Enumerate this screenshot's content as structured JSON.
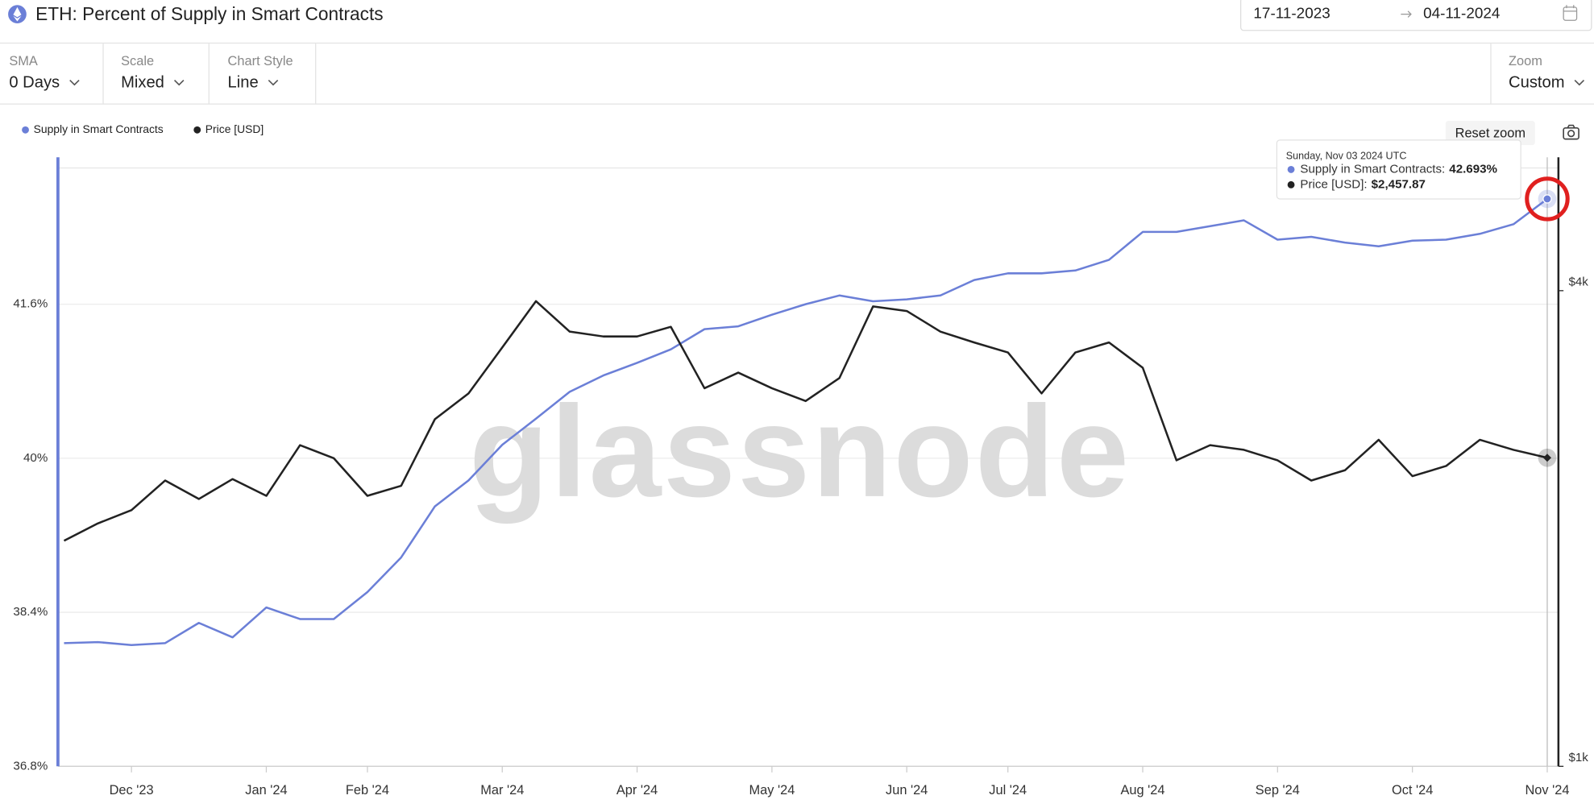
{
  "header": {
    "title": "ETH: Percent of Supply in Smart Contracts",
    "date_from": "17-11-2023",
    "date_to": "04-11-2024"
  },
  "controls": [
    {
      "label": "SMA",
      "value": "0 Days"
    },
    {
      "label": "Scale",
      "value": "Mixed"
    },
    {
      "label": "Chart Style",
      "value": "Line"
    },
    {
      "label": "Zoom",
      "value": "Custom"
    }
  ],
  "reset_zoom": "Reset zoom",
  "chart_data": {
    "type": "line",
    "categories": [
      null,
      null,
      "Dec '23",
      null,
      null,
      null,
      "Jan '24",
      null,
      null,
      "Feb '24",
      null,
      null,
      null,
      "Mar '24",
      null,
      null,
      null,
      "Apr '24",
      null,
      null,
      null,
      "May '24",
      null,
      null,
      null,
      "Jun '24",
      null,
      null,
      "Jul '24",
      null,
      null,
      null,
      "Aug '24",
      null,
      null,
      null,
      "Sep '24",
      null,
      null,
      null,
      "Oct '24",
      null,
      null,
      null,
      "Nov '24"
    ],
    "series": [
      {
        "name": "Supply in Smart Contracts",
        "color": "#6b7fd7",
        "axis": "y",
        "values": [
          38.08,
          38.09,
          38.06,
          38.08,
          38.29,
          38.14,
          38.45,
          38.33,
          38.33,
          38.61,
          38.97,
          39.5,
          39.77,
          40.14,
          40.41,
          40.69,
          40.86,
          40.99,
          41.13,
          41.34,
          41.37,
          41.49,
          41.6,
          41.69,
          41.63,
          41.65,
          41.69,
          41.85,
          41.92,
          41.92,
          41.95,
          42.06,
          42.35,
          42.35,
          42.41,
          42.47,
          42.27,
          42.3,
          42.24,
          42.2,
          42.26,
          42.27,
          42.33,
          42.43,
          42.693
        ]
      },
      {
        "name": "Price [USD]",
        "color": "#222222",
        "axis": "y2",
        "values": [
          1930,
          2030,
          2110,
          2300,
          2180,
          2310,
          2200,
          2550,
          2455,
          2200,
          2265,
          2750,
          2965,
          3390,
          3880,
          3550,
          3500,
          3500,
          3600,
          3010,
          3150,
          3010,
          2900,
          3100,
          3820,
          3770,
          3550,
          3440,
          3340,
          2965,
          3340,
          3440,
          3195,
          2440,
          2550,
          2515,
          2440,
          2300,
          2370,
          2590,
          2330,
          2400,
          2590,
          2515,
          2457.87
        ]
      }
    ],
    "ylim": [
      36.8,
      43.125
    ],
    "yticks": [
      {
        "value": 36.8,
        "label": "36.8%"
      },
      {
        "value": 38.4,
        "label": "38.4%"
      },
      {
        "value": 40,
        "label": "40%"
      },
      {
        "value": 41.6,
        "label": "41.6%"
      }
    ],
    "y2lim": [
      1000,
      5900
    ],
    "y2ticks": [
      {
        "value": 1000,
        "label": "$1k"
      },
      {
        "value": 4000,
        "label": "$4k"
      }
    ],
    "y2_scale": "log",
    "grid": true,
    "watermark": "glassnode",
    "tooltip": {
      "date": "Sunday, Nov 03 2024 UTC",
      "items": [
        {
          "name": "Supply in Smart Contracts:",
          "value": "42.693%"
        },
        {
          "name": "Price [USD]:",
          "value": "$2,457.87"
        }
      ]
    }
  }
}
